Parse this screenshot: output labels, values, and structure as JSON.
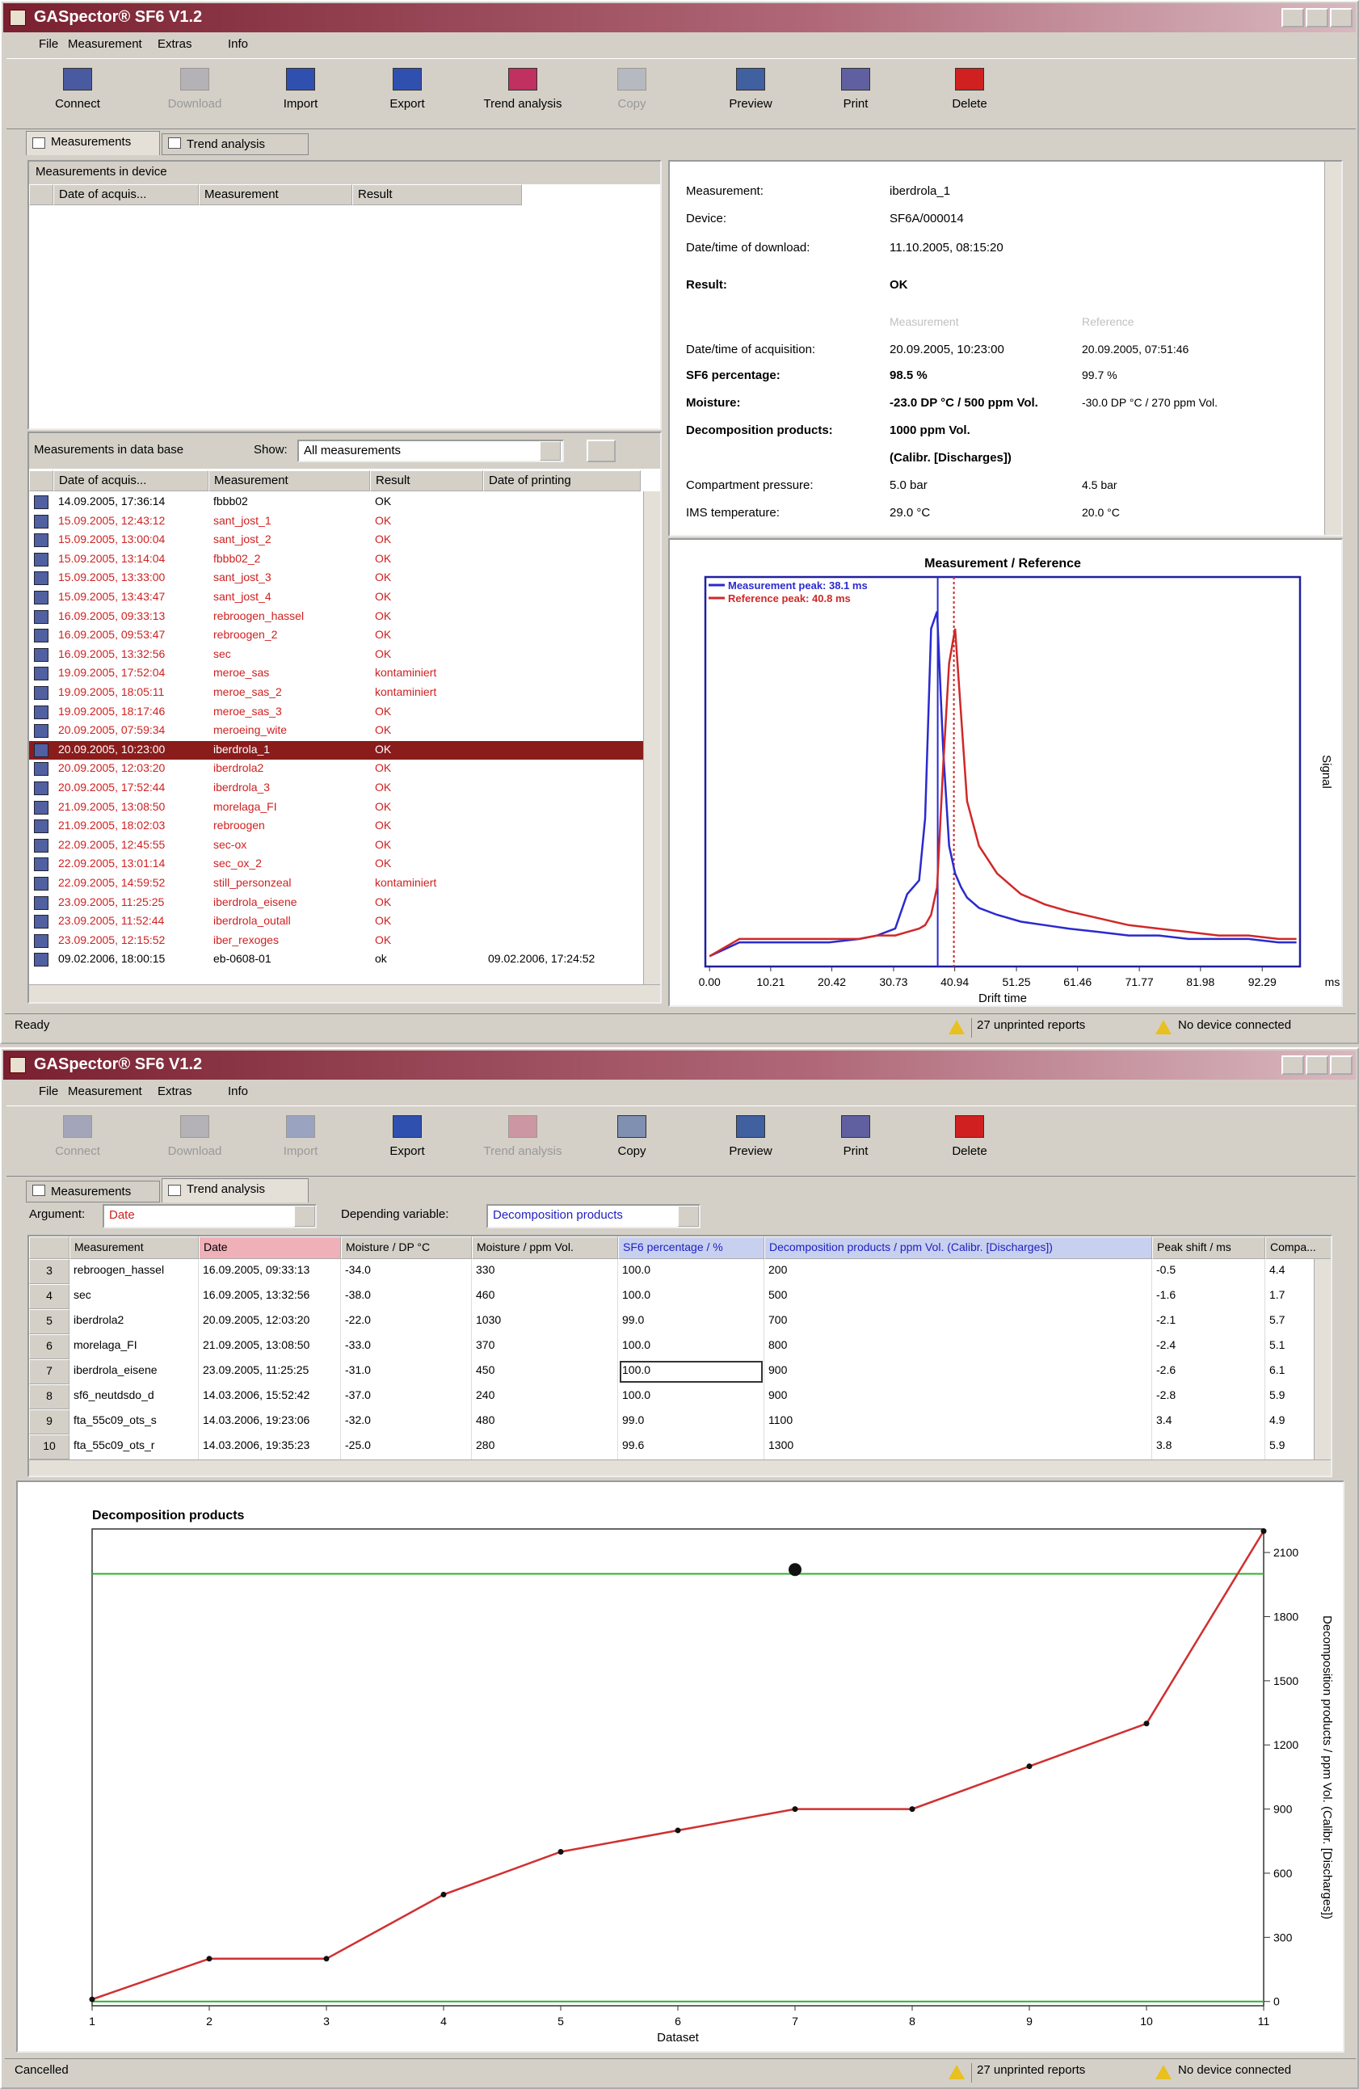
{
  "windows": [
    {
      "title": "GASpector® SF6 V1.2",
      "menu": [
        "File",
        "Measurement",
        "Extras",
        "Info"
      ],
      "toolbar": [
        {
          "label": "Connect",
          "enabled": true
        },
        {
          "label": "Download",
          "enabled": false
        },
        {
          "label": "Import",
          "enabled": true
        },
        {
          "label": "Export",
          "enabled": true
        },
        {
          "label": "Trend analysis",
          "enabled": true
        },
        {
          "label": "Copy",
          "enabled": false
        },
        {
          "label": "Preview",
          "enabled": true
        },
        {
          "label": "Print",
          "enabled": true
        },
        {
          "label": "Delete",
          "enabled": true
        }
      ],
      "tabs": [
        "Measurements",
        "Trend analysis"
      ],
      "active_tab": 0,
      "status": {
        "text": "Ready",
        "unprinted": "27 unprinted reports",
        "device": "No device connected"
      }
    },
    {
      "title": "GASpector® SF6 V1.2",
      "menu": [
        "File",
        "Measurement",
        "Extras",
        "Info"
      ],
      "toolbar": [
        {
          "label": "Connect",
          "enabled": false
        },
        {
          "label": "Download",
          "enabled": false
        },
        {
          "label": "Import",
          "enabled": false
        },
        {
          "label": "Export",
          "enabled": true
        },
        {
          "label": "Trend analysis",
          "enabled": false
        },
        {
          "label": "Copy",
          "enabled": true
        },
        {
          "label": "Preview",
          "enabled": true
        },
        {
          "label": "Print",
          "enabled": true
        },
        {
          "label": "Delete",
          "enabled": true
        }
      ],
      "tabs": [
        "Measurements",
        "Trend analysis"
      ],
      "active_tab": 1,
      "status": {
        "text": "Cancelled",
        "unprinted": "27 unprinted reports",
        "device": "No device connected"
      }
    }
  ],
  "device_panel": {
    "title": "Measurements in device",
    "columns": [
      "Date of acquis...",
      "Measurement",
      "Result"
    ]
  },
  "database_panel": {
    "title": "Measurements in data base",
    "show_label": "Show:",
    "show_value": "All measurements",
    "columns": [
      "Date of acquis...",
      "Measurement",
      "Result",
      "Date of printing"
    ],
    "selected_index": 13,
    "rows": [
      {
        "date": "14.09.2005, 17:36:14",
        "measurement": "fbbb02",
        "result": "OK",
        "unprinted": false
      },
      {
        "date": "15.09.2005, 12:43:12",
        "measurement": "sant_jost_1",
        "result": "OK",
        "unprinted": true
      },
      {
        "date": "15.09.2005, 13:00:04",
        "measurement": "sant_jost_2",
        "result": "OK",
        "unprinted": true
      },
      {
        "date": "15.09.2005, 13:14:04",
        "measurement": "fbbb02_2",
        "result": "OK",
        "unprinted": true
      },
      {
        "date": "15.09.2005, 13:33:00",
        "measurement": "sant_jost_3",
        "result": "OK",
        "unprinted": true
      },
      {
        "date": "15.09.2005, 13:43:47",
        "measurement": "sant_jost_4",
        "result": "OK",
        "unprinted": true
      },
      {
        "date": "16.09.2005, 09:33:13",
        "measurement": "rebroogen_hassel",
        "result": "OK",
        "unprinted": true
      },
      {
        "date": "16.09.2005, 09:53:47",
        "measurement": "rebroogen_2",
        "result": "OK",
        "unprinted": true
      },
      {
        "date": "16.09.2005, 13:32:56",
        "measurement": "sec",
        "result": "OK",
        "unprinted": true
      },
      {
        "date": "19.09.2005, 17:52:04",
        "measurement": "meroe_sas",
        "result": "kontaminiert",
        "unprinted": true
      },
      {
        "date": "19.09.2005, 18:05:11",
        "measurement": "meroe_sas_2",
        "result": "kontaminiert",
        "unprinted": true
      },
      {
        "date": "19.09.2005, 18:17:46",
        "measurement": "meroe_sas_3",
        "result": "OK",
        "unprinted": true
      },
      {
        "date": "20.09.2005, 07:59:34",
        "measurement": "meroeing_wite",
        "result": "OK",
        "unprinted": true
      },
      {
        "date": "20.09.2005, 10:23:00",
        "measurement": "iberdrola_1",
        "result": "OK",
        "unprinted": true
      },
      {
        "date": "20.09.2005, 12:03:20",
        "measurement": "iberdrola2",
        "result": "OK",
        "unprinted": true
      },
      {
        "date": "20.09.2005, 17:52:44",
        "measurement": "iberdrola_3",
        "result": "OK",
        "unprinted": true
      },
      {
        "date": "21.09.2005, 13:08:50",
        "measurement": "morelaga_FI",
        "result": "OK",
        "unprinted": true
      },
      {
        "date": "21.09.2005, 18:02:03",
        "measurement": "rebroogen",
        "result": "OK",
        "unprinted": true
      },
      {
        "date": "22.09.2005, 12:45:55",
        "measurement": "sec-ox",
        "result": "OK",
        "unprinted": true
      },
      {
        "date": "22.09.2005, 13:01:14",
        "measurement": "sec_ox_2",
        "result": "OK",
        "unprinted": true
      },
      {
        "date": "22.09.2005, 14:59:52",
        "measurement": "still_personzeal",
        "result": "kontaminiert",
        "unprinted": true
      },
      {
        "date": "23.09.2005, 11:25:25",
        "measurement": "iberdrola_eisene",
        "result": "OK",
        "unprinted": true
      },
      {
        "date": "23.09.2005, 11:52:44",
        "measurement": "iberdrola_outall",
        "result": "OK",
        "unprinted": true
      },
      {
        "date": "23.09.2005, 12:15:52",
        "measurement": "iber_rexoges",
        "result": "OK",
        "unprinted": true
      },
      {
        "date": "09.02.2006, 18:00:15",
        "measurement": "eb-0608-01",
        "result": "ok",
        "unprinted": false,
        "printed": "09.02.2006, 17:24:52"
      }
    ]
  },
  "details": {
    "info": [
      {
        "label": "Measurement:",
        "value": "iberdrola_1",
        "bold": false
      },
      {
        "label": "Device:",
        "value": "SF6A/000014",
        "bold": false
      },
      {
        "label": "Date/time of download:",
        "value": "11.10.2005, 08:15:20",
        "bold": false
      },
      {
        "label": "Result:",
        "value": "OK",
        "bold": true
      }
    ],
    "col_headers": [
      "Measurement",
      "Reference"
    ],
    "compare": [
      {
        "label": "Date/time of acquisition:",
        "measurement": "20.09.2005, 10:23:00",
        "reference": "20.09.2005, 07:51:46",
        "bold": false
      },
      {
        "label": "SF6 percentage:",
        "measurement": "98.5 %",
        "reference": "99.7 %",
        "bold": true
      },
      {
        "label": "Moisture:",
        "measurement": "-23.0 DP °C / 500 ppm Vol.",
        "reference": "-30.0 DP °C / 270 ppm Vol.",
        "bold": true
      },
      {
        "label": "Decomposition products:",
        "measurement": "1000 ppm Vol.",
        "bold": true
      },
      {
        "measurement": "(Calibr. [Discharges])",
        "bold": true
      },
      {
        "label": "Compartment pressure:",
        "measurement": "5.0 bar",
        "reference": "4.5 bar",
        "bold": false
      },
      {
        "label": "IMS temperature:",
        "measurement": "29.0 °C",
        "reference": "20.0 °C",
        "bold": false
      }
    ]
  },
  "trend": {
    "argument_label": "Argument:",
    "argument": "Date",
    "depending_label": "Depending variable:",
    "depending": "Decomposition products",
    "columns": [
      "Measurement",
      "Date",
      "Moisture / DP °C",
      "Moisture / ppm Vol.",
      "SF6 percentage / %",
      "Decomposition products / ppm Vol. (Calibr. [Discharges])",
      "Peak shift / ms",
      "Compa..."
    ],
    "rows": [
      [
        "3",
        "rebroogen_hassel",
        "16.09.2005, 09:33:13",
        "-34.0",
        "330",
        "100.0",
        "200",
        "-0.5",
        "4.4"
      ],
      [
        "4",
        "sec",
        "16.09.2005, 13:32:56",
        "-38.0",
        "460",
        "100.0",
        "500",
        "-1.6",
        "1.7"
      ],
      [
        "5",
        "iberdrola2",
        "20.09.2005, 12:03:20",
        "-22.0",
        "1030",
        "99.0",
        "700",
        "-2.1",
        "5.7"
      ],
      [
        "6",
        "morelaga_FI",
        "21.09.2005, 13:08:50",
        "-33.0",
        "370",
        "100.0",
        "800",
        "-2.4",
        "5.1"
      ],
      [
        "7",
        "iberdrola_eisene",
        "23.09.2005, 11:25:25",
        "-31.0",
        "450",
        "100.0",
        "900",
        "-2.6",
        "6.1"
      ],
      [
        "8",
        "sf6_neutdsdo_d",
        "14.03.2006, 15:52:42",
        "-37.0",
        "240",
        "100.0",
        "900",
        "-2.8",
        "5.9"
      ],
      [
        "9",
        "fta_55c09_ots_s",
        "14.03.2006, 19:23:06",
        "-32.0",
        "480",
        "99.0",
        "1100",
        "3.4",
        "4.9"
      ],
      [
        "10",
        "fta_55c09_ots_r",
        "14.03.2006, 19:35:23",
        "-25.0",
        "280",
        "99.6",
        "1300",
        "3.8",
        "5.9"
      ]
    ],
    "focused_cell": [
      4,
      5
    ]
  },
  "chart_data": [
    {
      "type": "line",
      "title": "Measurement / Reference",
      "x_label": "Drift time",
      "x_unit": "ms",
      "y_label": "Signal",
      "x": [
        0,
        5,
        10,
        15,
        20,
        25,
        28,
        31,
        33,
        35,
        36,
        37,
        38,
        39,
        40,
        41,
        42,
        43,
        45,
        48,
        52,
        56,
        60,
        65,
        70,
        75,
        80,
        85,
        90,
        95,
        98
      ],
      "series": [
        {
          "name": "Measurement peak: 38.1 ms",
          "color": "#2a2ad0",
          "values": [
            0,
            4,
            4,
            4,
            4,
            5,
            6,
            8,
            18,
            22,
            40,
            95,
            100,
            60,
            32,
            24,
            20,
            17,
            14,
            12,
            10,
            9,
            8,
            7,
            6,
            6,
            5,
            5,
            5,
            4,
            4
          ]
        },
        {
          "name": "Reference peak: 40.8 ms",
          "color": "#d02828",
          "values": [
            0,
            5,
            5,
            5,
            5,
            5,
            6,
            6,
            7,
            8,
            9,
            12,
            20,
            55,
            85,
            95,
            70,
            45,
            32,
            24,
            18,
            15,
            13,
            11,
            9,
            8,
            7,
            6,
            6,
            5,
            5
          ]
        }
      ],
      "peak_lines": [
        38.1,
        40.8
      ],
      "xlim": [
        -0.7,
        98.6
      ],
      "ylim": [
        -3,
        110
      ],
      "xticks": [
        {
          "value": 0,
          "label": "0.00"
        },
        {
          "value": 10.21,
          "label": "10.21"
        },
        {
          "value": 20.42,
          "label": "20.42"
        },
        {
          "value": 30.73,
          "label": "30.73"
        },
        {
          "value": 40.94,
          "label": "40.94"
        },
        {
          "value": 51.25,
          "label": "51.25"
        },
        {
          "value": 61.46,
          "label": "61.46"
        },
        {
          "value": 71.77,
          "label": "71.77"
        },
        {
          "value": 81.98,
          "label": "81.98"
        },
        {
          "value": 92.29,
          "label": "92.29"
        }
      ]
    },
    {
      "type": "line",
      "title": "Decomposition products",
      "x_label": "Dataset",
      "y_label": "Decomposition products / ppm Vol. (Calibr. [Discharges])",
      "x": [
        1,
        2,
        3,
        4,
        5,
        6,
        7,
        8,
        9,
        10,
        11
      ],
      "series": [
        {
          "color": "#d03030",
          "values": [
            10,
            200,
            200,
            500,
            700,
            800,
            900,
            900,
            1100,
            1300,
            2200
          ]
        }
      ],
      "limit_lines": [
        0,
        2000
      ],
      "limit_color": "#30b030",
      "marker": {
        "x": 7,
        "y": 2020
      },
      "xlim": [
        1,
        11
      ],
      "ylim": [
        -20,
        2210
      ],
      "xticks": [
        1,
        2,
        3,
        4,
        5,
        6,
        7,
        8,
        9,
        10,
        11
      ],
      "yticks": [
        0,
        300,
        600,
        900,
        1200,
        1500,
        1800,
        2100
      ],
      "y_axis_side": "right"
    }
  ]
}
